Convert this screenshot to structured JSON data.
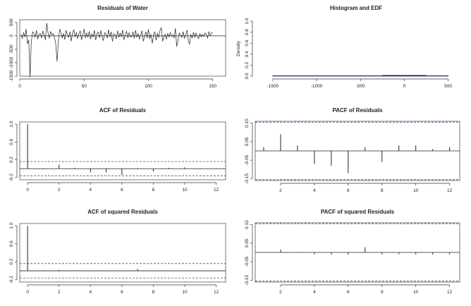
{
  "chart_data": [
    {
      "id": "residuals",
      "type": "line",
      "title": "Residuals of Water",
      "xlim": [
        0,
        160
      ],
      "ylim": [
        -1500,
        600
      ],
      "xticks": [
        0,
        50,
        100,
        150
      ],
      "yticks": [
        -1500,
        -1000,
        -500,
        0,
        500
      ],
      "series": [
        {
          "values": [
            60,
            -90,
            120,
            -40,
            250,
            -300,
            -150,
            -1550,
            -200,
            150,
            80,
            -50,
            200,
            -120,
            60,
            90,
            -80,
            180,
            20,
            -150,
            480,
            100,
            -90,
            160,
            40,
            80,
            -60,
            -300,
            -950,
            -200,
            250,
            130,
            -80,
            90,
            -140,
            210,
            40,
            -60,
            150,
            -200,
            80,
            230,
            -40,
            120,
            -90,
            60,
            190,
            -150,
            30,
            260,
            -80,
            110,
            -50,
            170,
            -120,
            70,
            -40,
            210,
            -160,
            90,
            140,
            -70,
            200,
            -30,
            -180,
            120,
            60,
            -90,
            230,
            -40,
            150,
            -210,
            80,
            30,
            -120,
            190,
            -60,
            100,
            -30,
            220,
            -150,
            40,
            170,
            -80,
            120,
            -40,
            -20,
            150,
            -90,
            210,
            -60,
            80,
            -120,
            30,
            190,
            -200,
            -30,
            160,
            -80,
            240,
            -110,
            60,
            -280,
            40,
            150,
            -160,
            90,
            -50,
            200,
            300,
            -200,
            -50,
            60,
            -130,
            90,
            -40,
            120,
            -20,
            40,
            -80,
            280,
            -400,
            -150,
            110,
            30,
            -60,
            160,
            -90,
            40,
            220,
            -190,
            -300,
            60,
            -80,
            140,
            -50,
            100,
            -30,
            -110,
            80,
            -40,
            60,
            -20,
            110,
            50,
            -80,
            150,
            20,
            100,
            130
          ]
        }
      ]
    },
    {
      "id": "histogram",
      "type": "bar",
      "title": "Histogram and EDF",
      "ylabel": "Density",
      "xlim": [
        -1700,
        600
      ],
      "ylim": [
        0,
        1
      ],
      "xticks": [
        -1500,
        -1000,
        -500,
        0,
        500
      ],
      "yticks": [
        0,
        0.2,
        0.4,
        0.6,
        0.8,
        1.0
      ],
      "bins": [
        {
          "from": -1500,
          "to": -1000,
          "density": 0.0001
        },
        {
          "from": -1000,
          "to": -500,
          "density": 0.0001
        },
        {
          "from": -500,
          "to": -250,
          "density": 0.0003
        },
        {
          "from": -250,
          "to": 0,
          "density": 0.002
        },
        {
          "from": 0,
          "to": 250,
          "density": 0.0021
        },
        {
          "from": 250,
          "to": 500,
          "density": 0.0002
        }
      ]
    },
    {
      "id": "acf",
      "type": "bar",
      "title": "ACF of Residuals",
      "xlim": [
        -0.5,
        12.6
      ],
      "ylim": [
        -0.25,
        1.05
      ],
      "xticks": [
        0,
        2,
        4,
        6,
        8,
        10,
        12
      ],
      "yticks": [
        -0.2,
        0.2,
        0.6,
        1.0
      ],
      "conf_bound": 0.16,
      "lags": [
        0,
        1,
        2,
        3,
        4,
        5,
        6,
        7,
        8,
        9,
        10,
        11,
        12
      ],
      "values": [
        1.0,
        -0.01,
        0.09,
        0.02,
        -0.08,
        -0.08,
        -0.14,
        0.01,
        -0.06,
        0.02,
        0.03,
        0.01,
        0.01
      ]
    },
    {
      "id": "pacf",
      "type": "bar",
      "title": "PACF of Residuals",
      "xlim": [
        0.5,
        12.6
      ],
      "ylim": [
        -0.16,
        0.16
      ],
      "xticks": [
        2,
        4,
        6,
        8,
        10,
        12
      ],
      "yticks": [
        -0.15,
        -0.05,
        0.05,
        0.15
      ],
      "conf_bound": 0.155,
      "lags": [
        1,
        2,
        3,
        4,
        5,
        6,
        7,
        8,
        9,
        10,
        11,
        12
      ],
      "values": [
        0.02,
        0.09,
        0.03,
        -0.07,
        -0.08,
        -0.12,
        0.02,
        -0.06,
        0.03,
        0.03,
        0.01,
        0.02
      ]
    },
    {
      "id": "acf_sq",
      "type": "bar",
      "title": "ACF of squared Residuals",
      "xlim": [
        -0.5,
        12.6
      ],
      "ylim": [
        -0.25,
        1.05
      ],
      "xticks": [
        0,
        2,
        4,
        6,
        8,
        10,
        12
      ],
      "yticks": [
        -0.2,
        0.2,
        0.6,
        1.0
      ],
      "conf_bound": 0.16,
      "lags": [
        0,
        1,
        2,
        3,
        4,
        5,
        6,
        7,
        8,
        9,
        10,
        11,
        12
      ],
      "values": [
        1.0,
        0.01,
        0.02,
        0.01,
        -0.01,
        -0.01,
        -0.01,
        0.04,
        -0.01,
        -0.01,
        -0.01,
        -0.01,
        -0.01
      ]
    },
    {
      "id": "pacf_sq",
      "type": "bar",
      "title": "PACF of squared Residuals",
      "xlim": [
        0.5,
        12.6
      ],
      "ylim": [
        -0.16,
        0.16
      ],
      "xticks": [
        2,
        4,
        6,
        8,
        10,
        12
      ],
      "yticks": [
        -0.15,
        -0.05,
        0.05,
        0.15
      ],
      "conf_bound": 0.155,
      "lags": [
        1,
        2,
        3,
        4,
        5,
        6,
        7,
        8,
        9,
        10,
        11,
        12
      ],
      "values": [
        0.002,
        0.015,
        0.002,
        -0.01,
        -0.012,
        -0.012,
        0.028,
        -0.01,
        -0.01,
        -0.01,
        -0.012,
        -0.01
      ]
    }
  ]
}
